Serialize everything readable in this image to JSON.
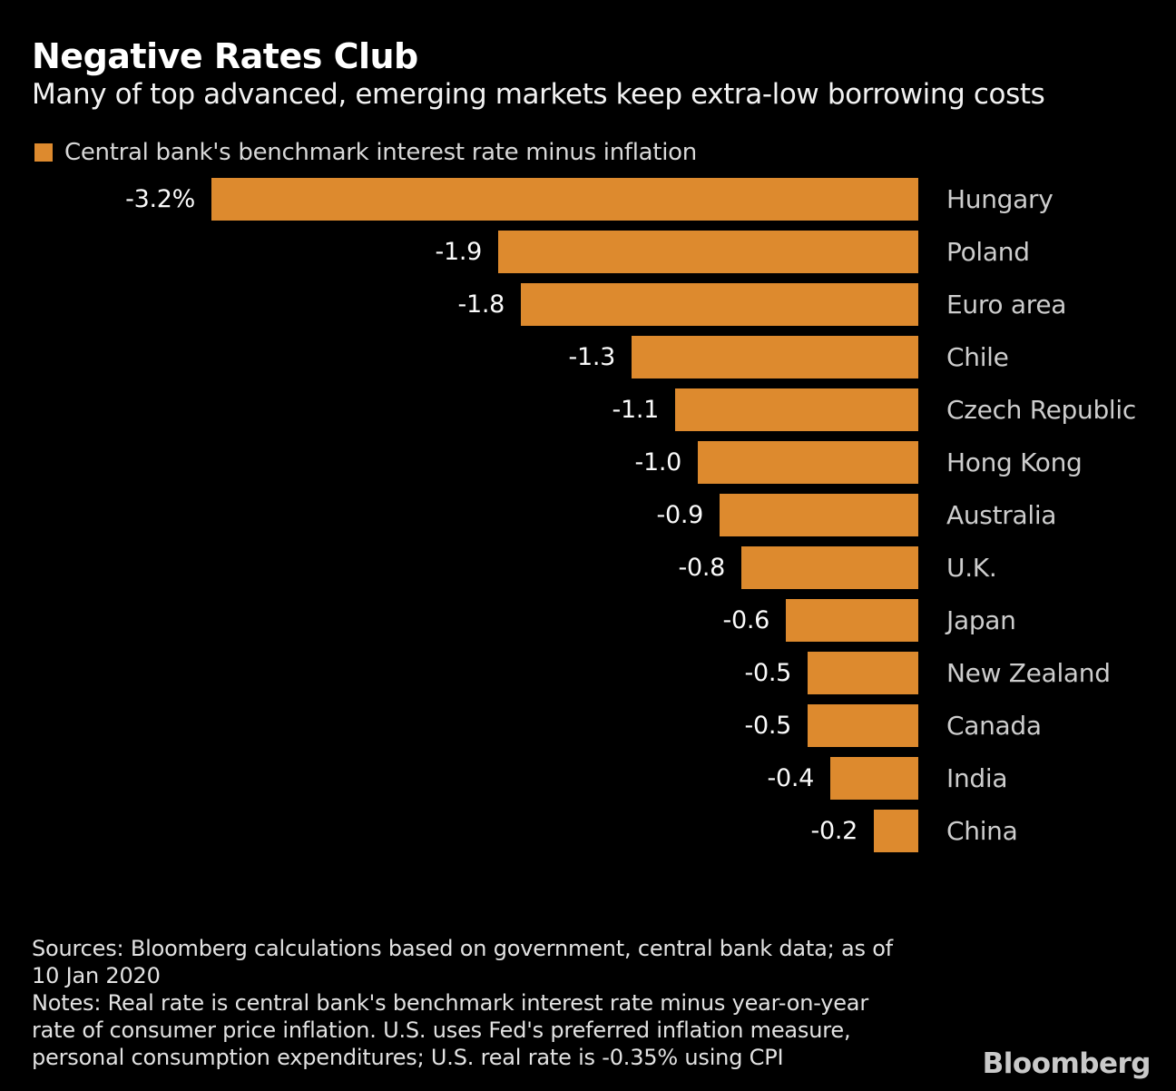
{
  "header": {
    "title": "Negative Rates Club",
    "subtitle": "Many of top advanced, emerging markets keep extra-low borrowing costs"
  },
  "legend": {
    "label": "Central bank's benchmark interest rate minus inflation"
  },
  "colors": {
    "background": "#000000",
    "bar": "#dd8a2e",
    "title_text": "#ffffff",
    "label_text": "#cdcdcd",
    "value_text": "#fafafa",
    "footer_text": "#e2e2e2"
  },
  "chart_data": {
    "type": "bar",
    "orientation": "horizontal",
    "title": "Negative Rates Club",
    "subtitle": "Many of top advanced, emerging markets keep extra-low borrowing costs",
    "legend_entries": [
      "Central bank's benchmark interest rate minus inflation"
    ],
    "legend_position": "top-left",
    "grid": false,
    "unit": "%",
    "xlim": [
      -3.2,
      0
    ],
    "categories": [
      "Hungary",
      "Poland",
      "Euro area",
      "Chile",
      "Czech Republic",
      "Hong Kong",
      "Australia",
      "U.K.",
      "Japan",
      "New Zealand",
      "Canada",
      "India",
      "China"
    ],
    "values": [
      -3.2,
      -1.9,
      -1.8,
      -1.3,
      -1.1,
      -1.0,
      -0.9,
      -0.8,
      -0.6,
      -0.5,
      -0.5,
      -0.4,
      -0.2
    ],
    "value_labels": [
      "-3.2%",
      "-1.9",
      "-1.8",
      "-1.3",
      "-1.1",
      "-1.0",
      "-0.9",
      "-0.8",
      "-0.6",
      "-0.5",
      "-0.5",
      "-0.4",
      "-0.2"
    ]
  },
  "footer": {
    "lines": [
      "Sources: Bloomberg calculations based on government, central bank data; as of",
      "10 Jan 2020",
      "Notes: Real rate is central bank's benchmark interest rate minus year-on-year",
      "rate of consumer price inflation. U.S. uses Fed's preferred inflation measure,",
      "personal consumption expenditures; U.S. real rate is -0.35% using CPI"
    ],
    "brand": "Bloomberg"
  }
}
